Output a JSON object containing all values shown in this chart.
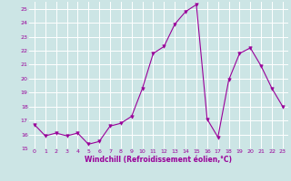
{
  "x": [
    0,
    1,
    2,
    3,
    4,
    5,
    6,
    7,
    8,
    9,
    10,
    11,
    12,
    13,
    14,
    15,
    16,
    17,
    18,
    19,
    20,
    21,
    22,
    23
  ],
  "y": [
    16.7,
    15.9,
    16.1,
    15.9,
    16.1,
    15.3,
    15.5,
    16.6,
    16.8,
    17.3,
    19.3,
    21.8,
    22.3,
    23.9,
    24.8,
    25.3,
    17.1,
    15.8,
    19.9,
    21.8,
    22.2,
    20.9,
    19.3,
    18.0
  ],
  "line_color": "#990099",
  "marker": "v",
  "marker_size": 2.5,
  "bg_color": "#cce5e5",
  "grid_color": "#ffffff",
  "xlabel": "Windchill (Refroidissement éolien,°C)",
  "xlabel_color": "#990099",
  "tick_color": "#990099",
  "ylim": [
    15,
    25.5
  ],
  "xlim": [
    -0.5,
    23.5
  ],
  "yticks": [
    15,
    16,
    17,
    18,
    19,
    20,
    21,
    22,
    23,
    24,
    25
  ],
  "xticks": [
    0,
    1,
    2,
    3,
    4,
    5,
    6,
    7,
    8,
    9,
    10,
    11,
    12,
    13,
    14,
    15,
    16,
    17,
    18,
    19,
    20,
    21,
    22,
    23
  ]
}
